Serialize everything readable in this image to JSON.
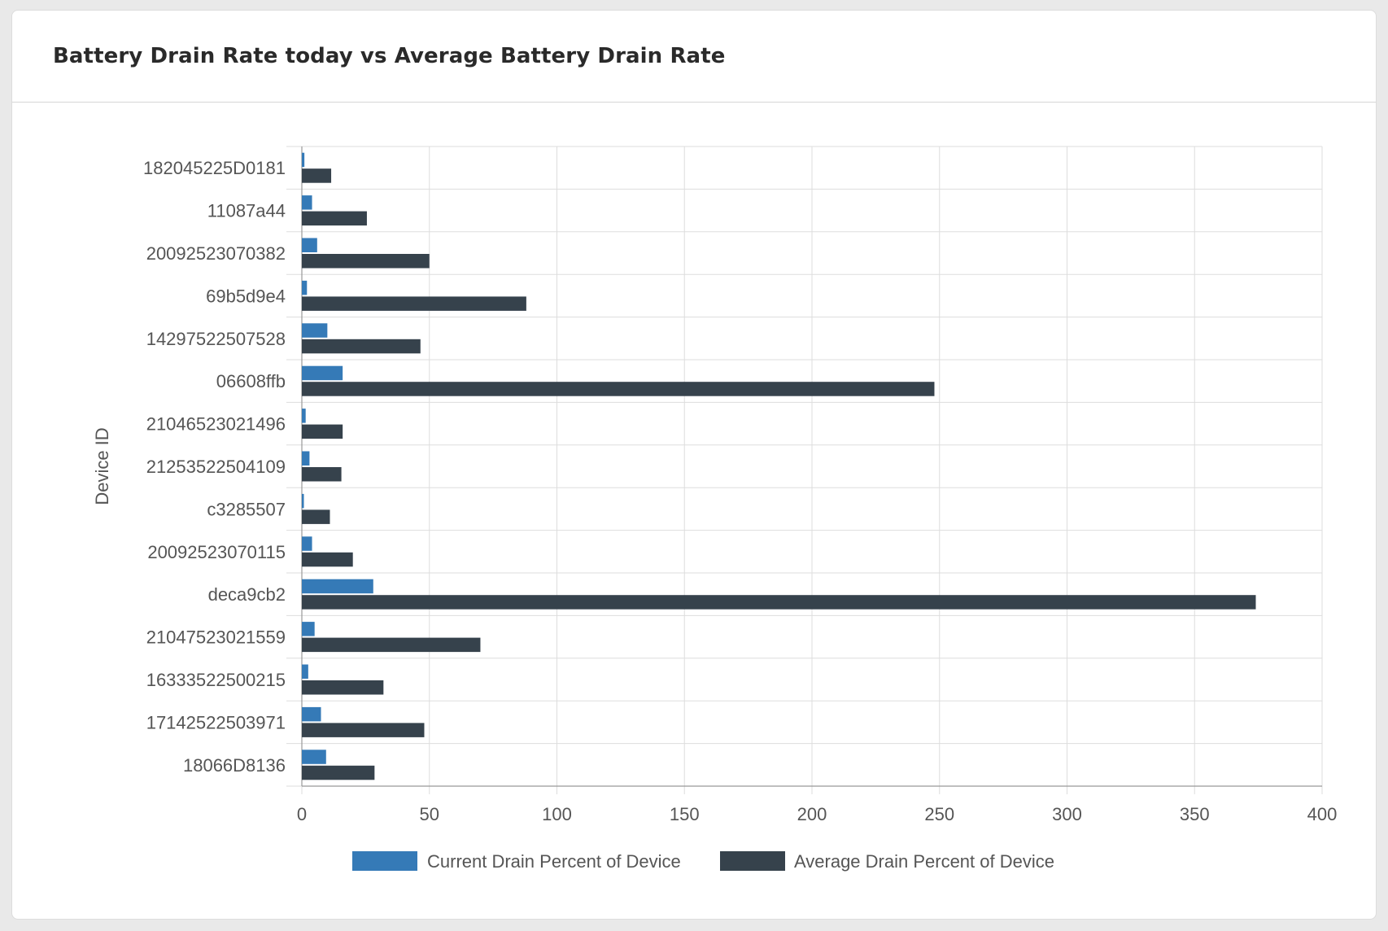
{
  "card": {
    "title": "Battery Drain Rate today vs Average Battery Drain Rate"
  },
  "colors": {
    "current": "#357ab7",
    "average": "#36424c",
    "grid": "#dddddd",
    "axis": "#999999"
  },
  "chart_data": {
    "type": "bar",
    "orientation": "horizontal",
    "title": "Battery Drain Rate today vs Average Battery Drain Rate",
    "ylabel": "Device ID",
    "xlabel": "",
    "xlim": [
      0,
      400
    ],
    "xticks": [
      0,
      50,
      100,
      150,
      200,
      250,
      300,
      350,
      400
    ],
    "grid": true,
    "legend_position": "bottom",
    "categories": [
      "182045225D0181",
      "11087a44",
      "20092523070382",
      "69b5d9e4",
      "14297522507528",
      "06608ffb",
      "21046523021496",
      "21253522504109",
      "c3285507",
      "20092523070115",
      "deca9cb2",
      "21047523021559",
      "16333522500215",
      "17142522503971",
      "18066D8136"
    ],
    "series": [
      {
        "name": "Current Drain Percent of Device",
        "color": "#357ab7",
        "values": [
          1,
          4,
          6,
          2,
          10,
          16,
          1.5,
          3,
          0.8,
          4,
          28,
          5,
          2.5,
          7.5,
          9.5
        ]
      },
      {
        "name": "Average Drain Percent of Device",
        "color": "#36424c",
        "values": [
          11.5,
          25.5,
          50,
          88,
          46.5,
          248,
          16,
          15.5,
          11,
          20,
          374,
          70,
          32,
          48,
          28.5
        ]
      }
    ]
  }
}
